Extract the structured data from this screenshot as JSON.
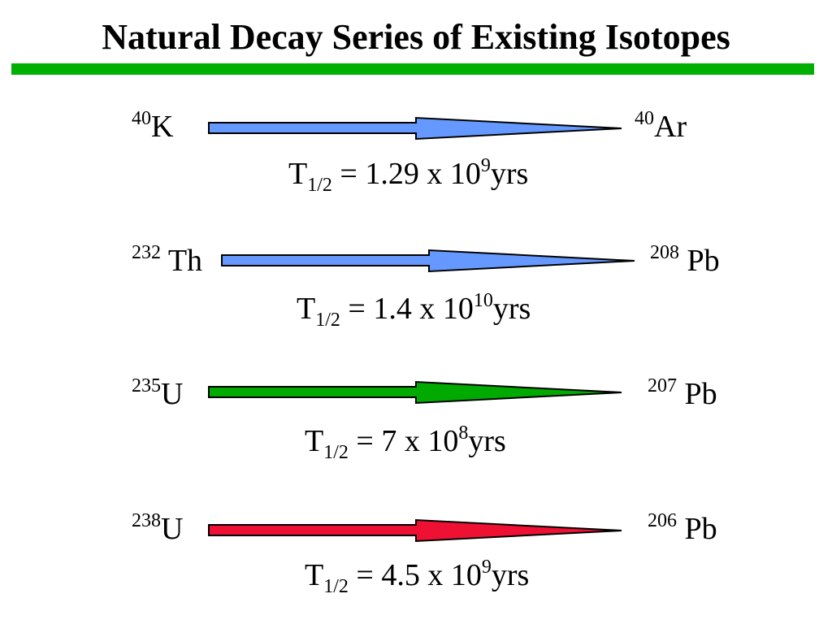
{
  "title": "Natural Decay Series of Existing Isotopes",
  "rule_color": "#00b000",
  "series": [
    {
      "parent_mass": "40",
      "parent_symbol": "K",
      "daughter_mass": "40",
      "daughter_symbol": "Ar",
      "halflife_symbol": "T",
      "halflife_sub": "1/2",
      "halflife_text": " = 1.29 x 10",
      "halflife_exp": "9",
      "halflife_unit": "yrs",
      "arrow_color": "#6699ff"
    },
    {
      "parent_mass": "232",
      "parent_symbol": "Th",
      "daughter_mass": "208",
      "daughter_symbol": "Pb",
      "halflife_symbol": "T",
      "halflife_sub": "1/2",
      "halflife_text": " = 1.4 x 10",
      "halflife_exp": "10",
      "halflife_unit": "yrs",
      "arrow_color": "#6699ff"
    },
    {
      "parent_mass": "235",
      "parent_symbol": "U",
      "daughter_mass": "207",
      "daughter_symbol": "Pb",
      "halflife_symbol": "T",
      "halflife_sub": "1/2",
      "halflife_text": " = 7 x 10",
      "halflife_exp": "8",
      "halflife_unit": "yrs",
      "arrow_color": "#00aa00"
    },
    {
      "parent_mass": "238",
      "parent_symbol": "U",
      "daughter_mass": "206",
      "daughter_symbol": "Pb",
      "halflife_symbol": "T",
      "halflife_sub": "1/2",
      "halflife_text": " = 4.5 x 10",
      "halflife_exp": "9",
      "halflife_unit": "yrs",
      "arrow_color": "#ee1133"
    }
  ]
}
